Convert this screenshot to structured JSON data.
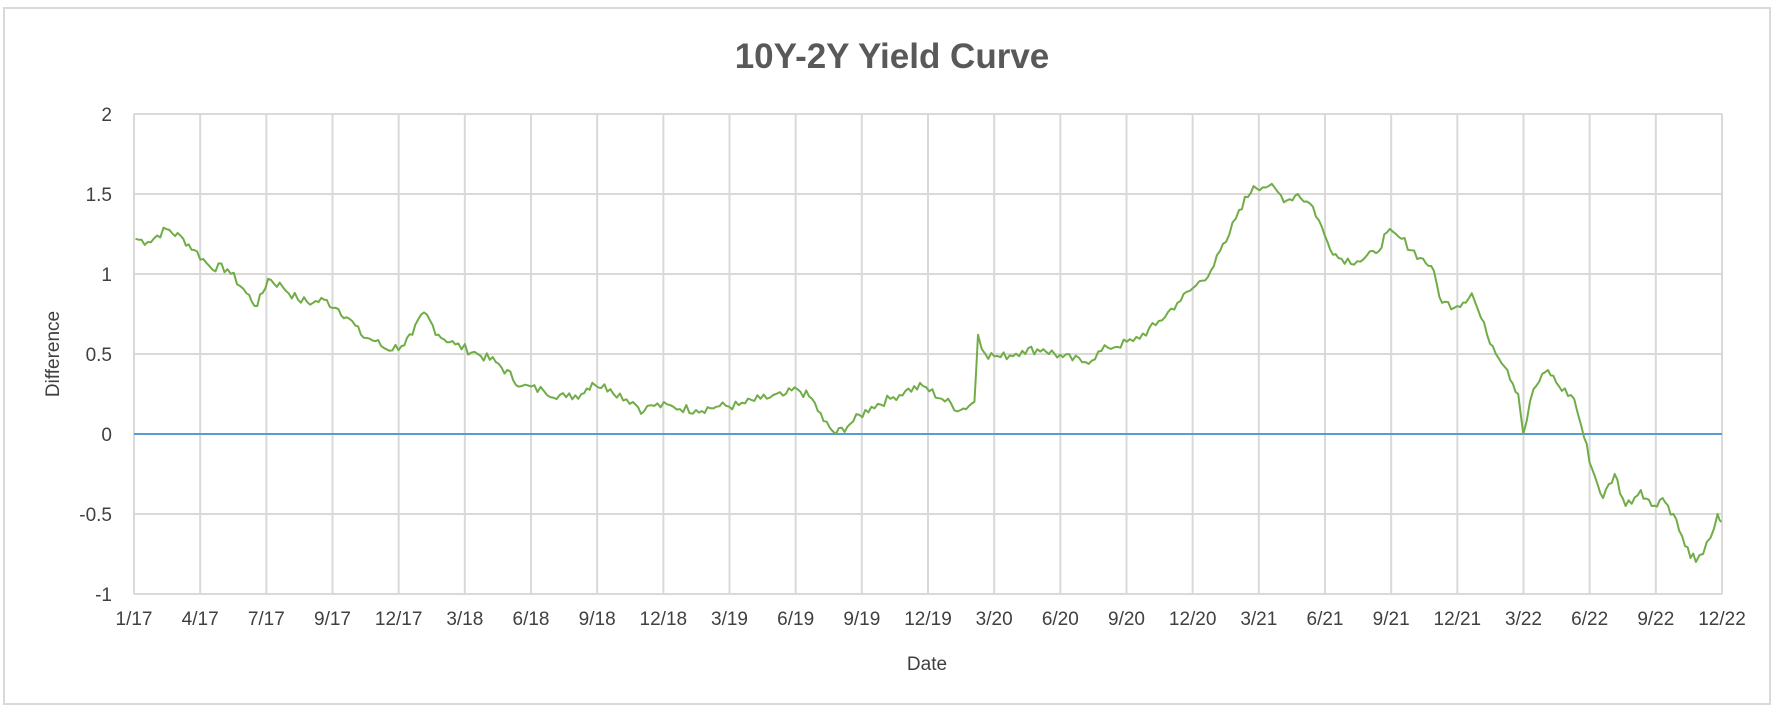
{
  "chart_data": {
    "type": "line",
    "title": "10Y-2Y Yield Curve",
    "xlabel": "Date",
    "ylabel": "Difference",
    "ylim": [
      -1,
      2
    ],
    "yticks": [
      "2",
      "1.5",
      "1",
      "0.5",
      "0",
      "-0.5",
      "-1"
    ],
    "xtick_labels": [
      "1/17",
      "4/17",
      "7/17",
      "9/17",
      "12/17",
      "3/18",
      "6/18",
      "9/18",
      "12/18",
      "3/19",
      "6/19",
      "9/19",
      "12/19",
      "3/20",
      "6/20",
      "9/20",
      "12/20",
      "3/21",
      "6/21",
      "9/21",
      "12/21",
      "3/22",
      "6/22",
      "9/22",
      "12/22"
    ],
    "grid": true,
    "colors": {
      "series": "#70ad47",
      "zero_line": "#5b9bd5",
      "grid": "#d9d9d9"
    },
    "series": [
      {
        "x": [
          "2017-01-03",
          "2017-01-20",
          "2017-02-15",
          "2017-03-10",
          "2017-03-25",
          "2017-04-15",
          "2017-05-10",
          "2017-06-05",
          "2017-06-20",
          "2017-07-05",
          "2017-07-25",
          "2017-08-15",
          "2017-09-05",
          "2017-09-20",
          "2017-10-10",
          "2017-10-25",
          "2017-11-10",
          "2017-11-30",
          "2017-12-15",
          "2018-01-05",
          "2018-01-20",
          "2018-02-05",
          "2018-02-25",
          "2018-03-20",
          "2018-04-20",
          "2018-05-15",
          "2018-06-20",
          "2018-07-20",
          "2018-08-20",
          "2018-09-10",
          "2018-09-25",
          "2018-10-20",
          "2018-11-20",
          "2018-12-05",
          "2018-12-15",
          "2019-01-15",
          "2019-02-15",
          "2019-03-15",
          "2019-04-15",
          "2019-05-15",
          "2019-06-15",
          "2019-07-05",
          "2019-07-25",
          "2019-08-10",
          "2019-08-27",
          "2019-09-20",
          "2019-10-15",
          "2019-11-10",
          "2019-12-01",
          "2019-12-25",
          "2020-01-20",
          "2020-02-15",
          "2020-03-05",
          "2020-03-10",
          "2020-03-20",
          "2020-04-10",
          "2020-05-10",
          "2020-06-08",
          "2020-07-05",
          "2020-08-05",
          "2020-09-05",
          "2020-10-10",
          "2020-11-10",
          "2020-12-10",
          "2021-01-05",
          "2021-01-25",
          "2021-02-15",
          "2021-03-05",
          "2021-03-25",
          "2021-04-15",
          "2021-05-10",
          "2021-05-25",
          "2021-06-15",
          "2021-07-05",
          "2021-07-20",
          "2021-08-15",
          "2021-09-10",
          "2021-09-25",
          "2021-10-15",
          "2021-11-10",
          "2021-11-25",
          "2021-12-10",
          "2021-12-31",
          "2022-01-20",
          "2022-02-10",
          "2022-03-10",
          "2022-03-25",
          "2022-04-01",
          "2022-04-15",
          "2022-05-05",
          "2022-05-20",
          "2022-06-10",
          "2022-06-20",
          "2022-07-05",
          "2022-07-20",
          "2022-08-05",
          "2022-08-20",
          "2022-09-10",
          "2022-09-25",
          "2022-10-10",
          "2022-10-25",
          "2022-11-10",
          "2022-11-25",
          "2022-12-05",
          "2022-12-15",
          "2022-12-25",
          "2022-12-30"
        ],
        "y": [
          1.22,
          1.2,
          1.28,
          1.22,
          1.15,
          1.05,
          1.03,
          0.88,
          0.8,
          0.97,
          0.92,
          0.84,
          0.82,
          0.84,
          0.78,
          0.72,
          0.62,
          0.58,
          0.53,
          0.55,
          0.62,
          0.76,
          0.62,
          0.56,
          0.5,
          0.45,
          0.3,
          0.27,
          0.23,
          0.25,
          0.32,
          0.28,
          0.2,
          0.14,
          0.18,
          0.17,
          0.15,
          0.17,
          0.18,
          0.22,
          0.24,
          0.28,
          0.22,
          0.08,
          0.0,
          0.08,
          0.17,
          0.22,
          0.27,
          0.3,
          0.22,
          0.15,
          0.2,
          0.62,
          0.5,
          0.48,
          0.52,
          0.53,
          0.48,
          0.45,
          0.54,
          0.58,
          0.68,
          0.82,
          0.93,
          1.02,
          1.2,
          1.4,
          1.55,
          1.55,
          1.46,
          1.5,
          1.42,
          1.2,
          1.1,
          1.08,
          1.13,
          1.26,
          1.22,
          1.1,
          1.05,
          0.82,
          0.8,
          0.88,
          0.62,
          0.4,
          0.25,
          0.0,
          0.28,
          0.4,
          0.3,
          0.22,
          0.05,
          -0.22,
          -0.4,
          -0.25,
          -0.45,
          -0.35,
          -0.45,
          -0.4,
          -0.5,
          -0.7,
          -0.8,
          -0.75,
          -0.65,
          -0.5,
          -0.55
        ]
      },
      {
        "x": [
          "2017-01-03",
          "2022-12-30"
        ],
        "y": [
          0,
          0
        ]
      }
    ]
  }
}
